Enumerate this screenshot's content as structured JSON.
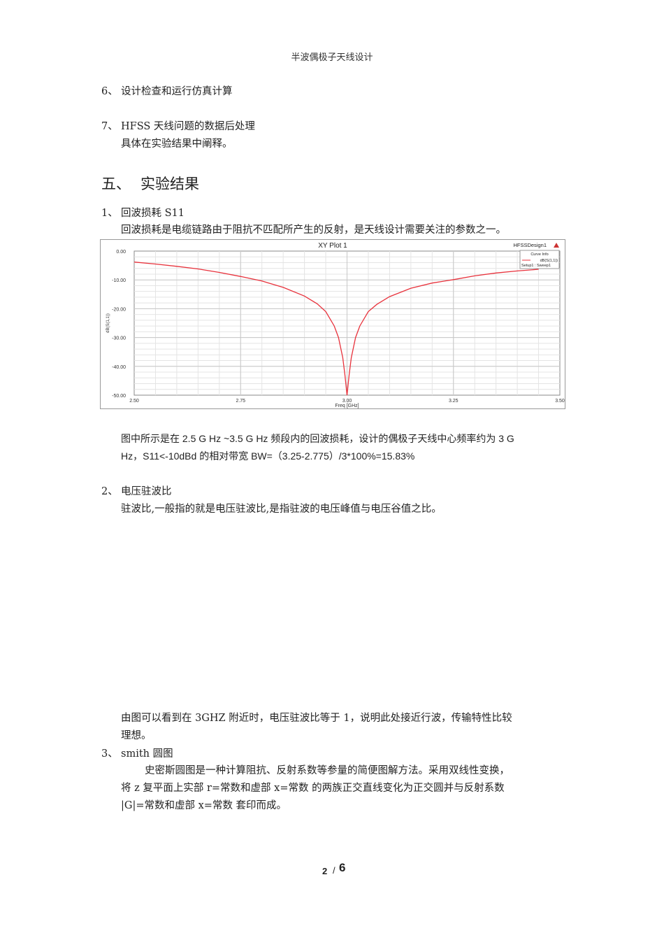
{
  "header": {
    "title": "半波偶极子天线设计"
  },
  "body": {
    "item6": {
      "num": "6、",
      "text": "设计检查和运行仿真计算"
    },
    "item7": {
      "num": "7、",
      "text": "HFSS 天线问题的数据后处理",
      "sub": "具体在实验结果中阐释。"
    },
    "section5": {
      "num": "五、",
      "title": "实验结果"
    },
    "s1": {
      "num": "1、",
      "title": "回波损耗 S11",
      "desc": "回波损耗是电缆链路由于阻抗不匹配所产生的反射，是天线设计需要关注的参数之一。"
    },
    "s1_note1": "图中所示是在 2.5 G Hz ~3.5 G Hz 频段内的回波损耗，设计的偶极子天线中心频率约为 3 G",
    "s1_note2": "Hz，S11<-10dBd 的相对带宽 BW=（3.25-2.775）/3*100%=15.83%",
    "s2": {
      "num": "2、",
      "title": "电压驻波比",
      "desc": "驻波比,一般指的就是电压驻波比,是指驻波的电压峰值与电压谷值之比。"
    },
    "s2_note1": "由图可以看到在 3GHZ 附近时，电压驻波比等于 1，说明此处接近行波，传输特性比较",
    "s2_note2": "理想。",
    "s3": {
      "num": "3、",
      "title": "smith 圆图",
      "p1": "史密斯圆图是一种计算阻抗、反射系数等参量的简便图解方法。采用双线性变换，",
      "p2": "将 z 复平面上实部  r=常数和虚部  x=常数  的两族正交直线变化为正交圆并与反射系数",
      "p3": "|G|=常数和虚部 x=常数  套印而成。"
    }
  },
  "footer": {
    "page": "2",
    "sep": "/",
    "total": "6"
  },
  "chart_data": {
    "type": "line",
    "title": "XY Plot 1",
    "design_label": "HFSSDesign1",
    "legend_title": "Curve Info",
    "legend_placement": "top-right",
    "xlabel": "Freq [GHz]",
    "ylabel": "dB(S(1,1))",
    "xlim": [
      2.5,
      3.5
    ],
    "ylim": [
      -50,
      0
    ],
    "xticks": [
      "2.50",
      "2.75",
      "3.00",
      "3.25",
      "3.50"
    ],
    "yticks": [
      "0.00",
      "-10.00",
      "-20.00",
      "-30.00",
      "-40.00",
      "-50.00"
    ],
    "grid": true,
    "series": [
      {
        "name": "dB(S(1,1))",
        "sub": "Setup1 : Sweep1",
        "color": "#e8323c",
        "x": [
          2.5,
          2.55,
          2.6,
          2.65,
          2.7,
          2.75,
          2.8,
          2.85,
          2.9,
          2.93,
          2.95,
          2.97,
          2.98,
          2.99,
          2.995,
          3.0,
          3.005,
          3.01,
          3.02,
          3.03,
          3.05,
          3.07,
          3.1,
          3.15,
          3.2,
          3.25,
          3.3,
          3.35,
          3.4,
          3.45
        ],
        "y": [
          -3.8,
          -4.5,
          -5.3,
          -6.2,
          -7.4,
          -8.8,
          -10.4,
          -12.6,
          -15.6,
          -18.3,
          -21,
          -26,
          -30,
          -37,
          -43,
          -50,
          -43,
          -37,
          -30,
          -26,
          -21,
          -18.5,
          -15.8,
          -12.9,
          -11.1,
          -9.9,
          -8.6,
          -7.6,
          -6.9,
          -6.3
        ]
      }
    ]
  }
}
